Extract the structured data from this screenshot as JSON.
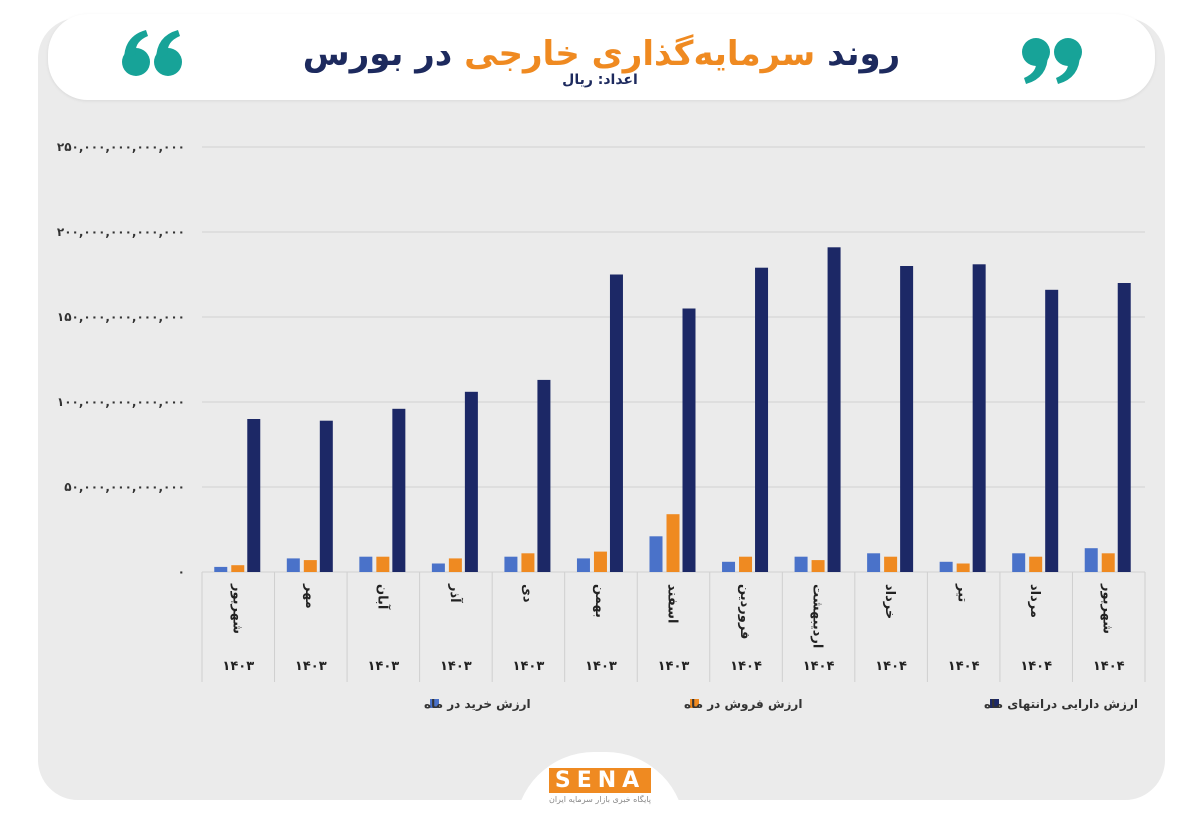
{
  "chart_data": {
    "type": "bar",
    "title": [
      "روند",
      "سرمایه‌گذاری خارجی",
      "در بورس"
    ],
    "subtitle": "اعداد: ریال",
    "categories": [
      "شهریور",
      "مهر",
      "آبان",
      "آذر",
      "دی",
      "بهمن",
      "اسفند",
      "فروردین",
      "اردیبهشت",
      "خرداد",
      "تیر",
      "مرداد",
      "شهریور"
    ],
    "years": [
      "۱۴۰۳",
      "۱۴۰۳",
      "۱۴۰۳",
      "۱۴۰۳",
      "۱۴۰۳",
      "۱۴۰۳",
      "۱۴۰۳",
      "۱۴۰۴",
      "۱۴۰۴",
      "۱۴۰۴",
      "۱۴۰۴",
      "۱۴۰۴",
      "۱۴۰۴"
    ],
    "series": [
      {
        "name": "ارزش خرید در ماه",
        "color": "#4a72c9",
        "values": [
          3000000000000,
          8000000000000,
          9000000000000,
          5000000000000,
          9000000000000,
          8000000000000,
          21000000000000,
          6000000000000,
          9000000000000,
          11000000000000,
          6000000000000,
          11000000000000,
          14000000000000
        ]
      },
      {
        "name": "ارزش فروش در ماه",
        "color": "#ef8a21",
        "values": [
          4000000000000,
          7000000000000,
          9000000000000,
          8000000000000,
          11000000000000,
          12000000000000,
          34000000000000,
          9000000000000,
          7000000000000,
          9000000000000,
          5000000000000,
          9000000000000,
          11000000000000
        ]
      },
      {
        "name": "ارزش دارایی درانتهای ماه",
        "color": "#1c2866",
        "values": [
          90000000000000,
          89000000000000,
          96000000000000,
          106000000000000,
          113000000000000,
          175000000000000,
          155000000000000,
          179000000000000,
          191000000000000,
          180000000000000,
          181000000000000,
          166000000000000,
          170000000000000
        ]
      }
    ],
    "ylim": [
      0,
      250000000000000
    ],
    "yticks": [
      {
        "value": 0,
        "label": "۰"
      },
      {
        "value": 50000000000000,
        "label": "۵۰,۰۰۰,۰۰۰,۰۰۰,۰۰۰"
      },
      {
        "value": 100000000000000,
        "label": "۱۰۰,۰۰۰,۰۰۰,۰۰۰,۰۰۰"
      },
      {
        "value": 150000000000000,
        "label": "۱۵۰,۰۰۰,۰۰۰,۰۰۰,۰۰۰"
      },
      {
        "value": 200000000000000,
        "label": "۲۰۰,۰۰۰,۰۰۰,۰۰۰,۰۰۰"
      },
      {
        "value": 250000000000000,
        "label": "۲۵۰,۰۰۰,۰۰۰,۰۰۰,۰۰۰"
      }
    ],
    "grid": true,
    "legend": "bottom",
    "logo": "SENA",
    "logo_tagline": "پایگاه خبری بازار سرمایه ایران"
  }
}
